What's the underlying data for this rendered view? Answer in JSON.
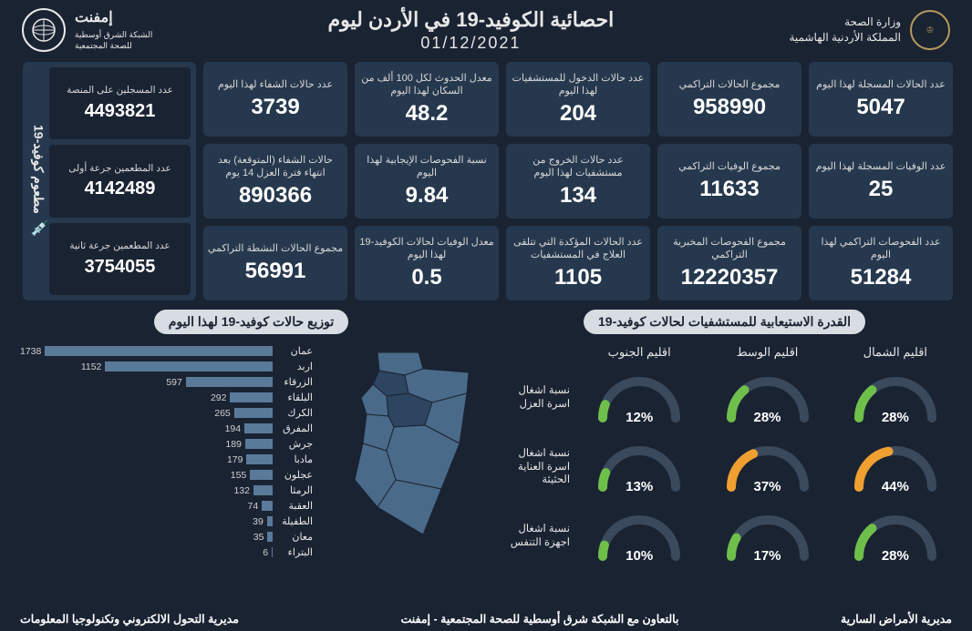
{
  "header": {
    "ministry_line1": "وزارة الصحة",
    "ministry_line2": "المملكة الأردنية الهاشمية",
    "title": "احصائية الكوفيد-19 في الأردن ليوم",
    "date": "01/12/2021",
    "left_brand": "إمفنت",
    "left_sub": "الشبكة الشرق أوسطية\nللصحة المجتمعية"
  },
  "vaccine": {
    "side_label": "مطعوم كوفيد-19",
    "cards": [
      {
        "label": "عدد المسجلين على المنصة",
        "value": "4493821"
      },
      {
        "label": "عدد المطعمين جرعة أولى",
        "value": "4142489"
      },
      {
        "label": "عدد المطعمين جرعة ثانية",
        "value": "3754055"
      }
    ]
  },
  "stats": [
    [
      {
        "label": "عدد الحالات المسجلة لهذا اليوم",
        "value": "5047"
      },
      {
        "label": "مجموع الحالات التراكمي",
        "value": "958990"
      },
      {
        "label": "عدد حالات الدخول للمستشفيات لهذا اليوم",
        "value": "204"
      },
      {
        "label": "معدل الحدوث لكل 100 ألف من السكان لهذا اليوم",
        "value": "48.2"
      },
      {
        "label": "عدد حالات الشفاء لهذا اليوم",
        "value": "3739"
      }
    ],
    [
      {
        "label": "عدد الوفيات المسجلة لهذا اليوم",
        "value": "25"
      },
      {
        "label": "مجموع الوفيات التراكمي",
        "value": "11633"
      },
      {
        "label": "عدد حالات الخروج من مستشفيات لهذا اليوم",
        "value": "134"
      },
      {
        "label": "نسبة الفحوصات الإيجابية لهذا اليوم",
        "value": "9.84"
      },
      {
        "label": "حالات الشفاء (المتوقعة) بعد انتهاء فترة العزل 14 يوم",
        "value": "890366"
      }
    ],
    [
      {
        "label": "عدد الفحوصات التراكمي لهذا اليوم",
        "value": "51284"
      },
      {
        "label": "مجموع الفحوصات المخبرية التراكمي",
        "value": "12220357"
      },
      {
        "label": "عدد الحالات المؤكدة التي تتلقى العلاج في المستشفيات",
        "value": "1105"
      },
      {
        "label": "معدل الوفيات لحالات الكوفيد-19 لهذا اليوم",
        "value": "0.5"
      },
      {
        "label": "مجموع الحالات النشطة التراكمي",
        "value": "56991"
      }
    ]
  ],
  "capacity": {
    "header": "القدرة الاستيعابية للمستشفيات لحالات كوفيد-19",
    "regions": [
      "اقليم الشمال",
      "اقليم الوسط",
      "اقليم الجنوب"
    ],
    "rows": [
      {
        "label": "نسبة اشغال اسرة العزل",
        "values": [
          28,
          28,
          12
        ]
      },
      {
        "label": "نسبة اشغال اسرة العناية الحثيثة",
        "values": [
          44,
          37,
          13
        ]
      },
      {
        "label": "نسبة اشغال اجهزة التنفس",
        "values": [
          28,
          17,
          10
        ]
      }
    ],
    "colors": {
      "low": "#6fbf4b",
      "mid": "#f0a030",
      "track": "#3a4a5c"
    },
    "threshold_mid": 35
  },
  "distribution": {
    "header": "توزيع حالات كوفيد-19 لهذا اليوم",
    "max": 1738,
    "bar_color": "#5a7a9a",
    "items": [
      {
        "name": "عمان",
        "value": 1738
      },
      {
        "name": "اربد",
        "value": 1152
      },
      {
        "name": "الزرقاء",
        "value": 597
      },
      {
        "name": "البلقاء",
        "value": 292
      },
      {
        "name": "الكرك",
        "value": 265
      },
      {
        "name": "المفرق",
        "value": 194
      },
      {
        "name": "جرش",
        "value": 189
      },
      {
        "name": "مادبا",
        "value": 179
      },
      {
        "name": "عجلون",
        "value": 155
      },
      {
        "name": "الرمثا",
        "value": 132
      },
      {
        "name": "العقبة",
        "value": 74
      },
      {
        "name": "الطفيلة",
        "value": 39
      },
      {
        "name": "معان",
        "value": 35
      },
      {
        "name": "البتراء",
        "value": 6
      }
    ]
  },
  "footer": {
    "right": "مديرية الأمراض السارية",
    "center": "بالتعاون مع الشبكة شرق أوسطية للصحة المجتمعية - إمفنت",
    "left": "مديرية التحول الالكتروني وتكنولوجيا المعلومات"
  }
}
